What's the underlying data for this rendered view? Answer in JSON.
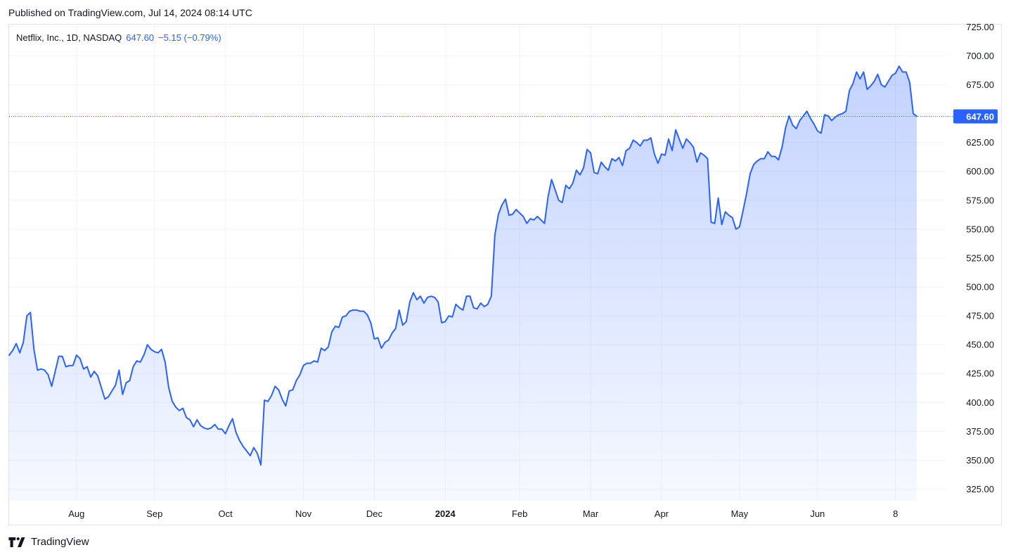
{
  "header": {
    "published": "Published on TradingView.com, Jul 14, 2024 08:14 UTC"
  },
  "legend": {
    "symbol": "Netflix, Inc., 1D, NASDAQ",
    "last": "647.60",
    "change": "−5.15 (−0.79%)"
  },
  "footer": {
    "brand": "TradingView"
  },
  "colors": {
    "line": "#2962ff",
    "grid": "#f0f3fa",
    "text": "#131722",
    "price_label_bg": "#2962ff"
  },
  "chart_data": {
    "type": "area",
    "title": "Netflix, Inc., 1D, NASDAQ",
    "ylim": [
      315,
      727
    ],
    "y_ticks": [
      325,
      350,
      375,
      400,
      425,
      450,
      475,
      500,
      525,
      550,
      575,
      600,
      625,
      650,
      675,
      700,
      725
    ],
    "y_tick_labels": [
      "325.00",
      "350.00",
      "375.00",
      "400.00",
      "425.00",
      "450.00",
      "475.00",
      "500.00",
      "525.00",
      "550.00",
      "575.00",
      "600.00",
      "625.00",
      "650.00",
      "675.00",
      "700.00",
      "725.00"
    ],
    "x_ticks": [
      {
        "label": "Aug",
        "index": 19,
        "bold": false
      },
      {
        "label": "Sep",
        "index": 41,
        "bold": false
      },
      {
        "label": "Oct",
        "index": 61,
        "bold": false
      },
      {
        "label": "Nov",
        "index": 83,
        "bold": false
      },
      {
        "label": "Dec",
        "index": 103,
        "bold": false
      },
      {
        "label": "2024",
        "index": 123,
        "bold": true
      },
      {
        "label": "Feb",
        "index": 144,
        "bold": false
      },
      {
        "label": "Mar",
        "index": 164,
        "bold": false
      },
      {
        "label": "Apr",
        "index": 184,
        "bold": false
      },
      {
        "label": "May",
        "index": 206,
        "bold": false
      },
      {
        "label": "Jun",
        "index": 228,
        "bold": false
      },
      {
        "label": "8",
        "index": 250,
        "bold": false
      }
    ],
    "last_value_label": "647.60",
    "series": [
      {
        "values": [
          441,
          445,
          451,
          443,
          452,
          475,
          478,
          446,
          428,
          429,
          428,
          424,
          414,
          427,
          440,
          440,
          431,
          432,
          432,
          441,
          438,
          429,
          431,
          422,
          427,
          423,
          413,
          403,
          405,
          410,
          415,
          428,
          407,
          417,
          419,
          431,
          436,
          435,
          441,
          450,
          446,
          444,
          443,
          446,
          435,
          413,
          401,
          396,
          393,
          395,
          387,
          385,
          379,
          385,
          380,
          378,
          377,
          378,
          381,
          377,
          377,
          373,
          380,
          386,
          374,
          367,
          362,
          358,
          354,
          361,
          356,
          346,
          402,
          401,
          406,
          414,
          411,
          403,
          397,
          410,
          411,
          419,
          424,
          432,
          434,
          434,
          436,
          435,
          447,
          445,
          448,
          461,
          466,
          465,
          474,
          475,
          479,
          480,
          480,
          479,
          479,
          476,
          469,
          455,
          456,
          447,
          452,
          454,
          460,
          464,
          480,
          467,
          470,
          487,
          495,
          489,
          492,
          486,
          491,
          492,
          491,
          487,
          469,
          470,
          475,
          474,
          485,
          482,
          480,
          492,
          492,
          482,
          481,
          486,
          483,
          485,
          492,
          545,
          563,
          571,
          576,
          562,
          563,
          567,
          564,
          561,
          555,
          559,
          558,
          561,
          558,
          555,
          578,
          593,
          584,
          575,
          573,
          588,
          585,
          590,
          601,
          597,
          603,
          619,
          616,
          599,
          598,
          608,
          604,
          601,
          611,
          609,
          612,
          605,
          618,
          620,
          627,
          625,
          622,
          627,
          627,
          629,
          615,
          607,
          615,
          614,
          628,
          618,
          636,
          628,
          620,
          628,
          625,
          621,
          608,
          616,
          614,
          611,
          556,
          555,
          577,
          554,
          565,
          562,
          560,
          550,
          552,
          566,
          581,
          598,
          606,
          609,
          611,
          611,
          617,
          613,
          613,
          610,
          621,
          638,
          648,
          640,
          637,
          644,
          648,
          652,
          646,
          641,
          635,
          633,
          649,
          648,
          644,
          647,
          649,
          650,
          652,
          670,
          676,
          686,
          680,
          686,
          671,
          674,
          678,
          684,
          675,
          673,
          678,
          683,
          685,
          691,
          686,
          686,
          677,
          650,
          647.6
        ]
      }
    ]
  }
}
